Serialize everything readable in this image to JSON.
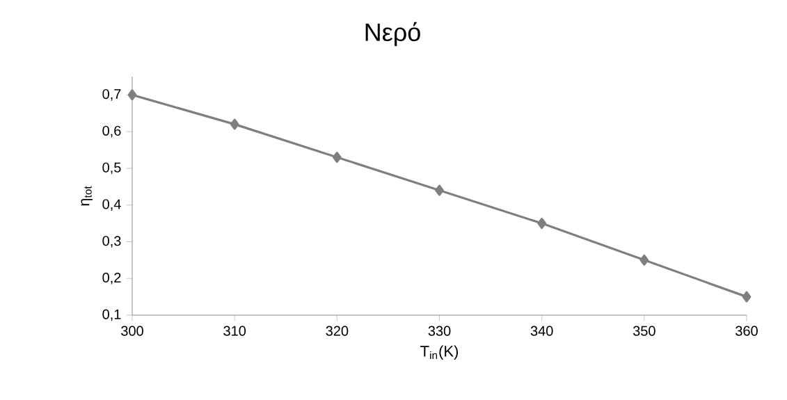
{
  "chart_data": {
    "type": "line",
    "title": "Νερό",
    "xlabel": "T$_{in}$(K)",
    "ylabel": "η$_{tot}$",
    "x": [
      300,
      310,
      320,
      330,
      340,
      350,
      360
    ],
    "series": [
      {
        "color": "#7f7f7f",
        "values": [
          0.7,
          0.62,
          0.53,
          0.44,
          0.35,
          0.25,
          0.15
        ]
      }
    ],
    "xlim": [
      300,
      360
    ],
    "xticks": [
      300,
      310,
      320,
      330,
      340,
      350,
      360
    ],
    "ylim": [
      0.1,
      0.75
    ],
    "yticks": [
      {
        "value": 0.1,
        "label": "0,1"
      },
      {
        "value": 0.2,
        "label": "0,2"
      },
      {
        "value": 0.3,
        "label": "0,3"
      },
      {
        "value": 0.4,
        "label": "0,4"
      },
      {
        "value": 0.5,
        "label": "0,5"
      },
      {
        "value": 0.6,
        "label": "0,6"
      },
      {
        "value": 0.7,
        "label": "0,7"
      }
    ],
    "marker": "diamond",
    "line_style": "solid"
  }
}
